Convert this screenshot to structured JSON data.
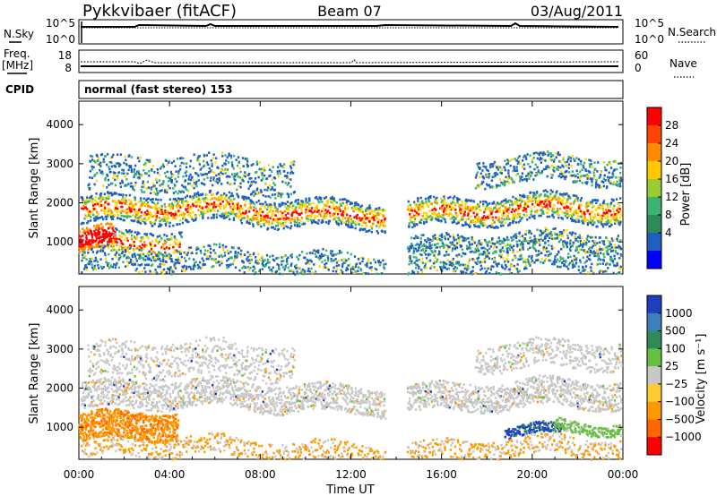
{
  "header": {
    "station": "Pykkvibaer (fitACF)",
    "beam": "Beam 07",
    "date": "03/Aug/2011"
  },
  "top_panels": {
    "nsky_label": "N.Sky",
    "nsky_ticks": [
      "10^5",
      "10^0"
    ],
    "nsearch_label": "N.Search",
    "nsearch_ticks": [
      "10^5",
      "10^0"
    ],
    "freq_label": "Freq.",
    "freq_unit": "[MHz]",
    "freq_ticks": [
      "18",
      "8"
    ],
    "nave_label": "Nave",
    "nave_ticks": [
      "60",
      "0"
    ],
    "cpid_label": "CPID",
    "cpid_text": "normal (fast stereo) 153"
  },
  "chart_data": [
    {
      "type": "heatmap",
      "name": "power-panel",
      "ylabel": "Slant Range [km]",
      "yticks": [
        "4000",
        "3000",
        "2000",
        "1000"
      ],
      "yticks_values": [
        4000,
        3000,
        2000,
        1000
      ],
      "ylim": [
        180,
        4600
      ],
      "xticks": [
        "00:00",
        "04:00",
        "08:00",
        "12:00",
        "16:00",
        "20:00",
        "00:00"
      ],
      "xlim_hours": [
        0,
        24
      ],
      "colorbar_label": "Power [dB]",
      "colorbar_ticks": [
        "28",
        "24",
        "20",
        "16",
        "12",
        "8",
        "4"
      ],
      "colorbar_colors": [
        "#ff0000",
        "#ff4500",
        "#ff8c00",
        "#ffc800",
        "#9acd32",
        "#3cb371",
        "#2e8b57",
        "#1f5fbf",
        "#0000ff"
      ],
      "data_gap_hours": [
        13.5,
        14.5
      ],
      "echo_bands": [
        {
          "range_km": [
            1500,
            2200
          ],
          "level": "peak"
        },
        {
          "range_km": [
            2400,
            3100
          ],
          "level": "moderate"
        },
        {
          "range_km": [
            800,
            1300
          ],
          "level": "high, 00:00-01:30"
        }
      ]
    },
    {
      "type": "heatmap",
      "name": "velocity-panel",
      "ylabel": "Slant Range [km]",
      "yticks": [
        "4000",
        "3000",
        "2000",
        "1000"
      ],
      "yticks_values": [
        4000,
        3000,
        2000,
        1000
      ],
      "ylim": [
        180,
        4600
      ],
      "xticks": [
        "00:00",
        "04:00",
        "08:00",
        "12:00",
        "16:00",
        "20:00",
        "00:00"
      ],
      "xlim_hours": [
        0,
        24
      ],
      "xlabel": "Time UT",
      "colorbar_label": "Velocity [m s⁻¹]",
      "colorbar_ticks": [
        "1000",
        "500",
        "100",
        "25",
        "−25",
        "−100",
        "−500",
        "−1000"
      ],
      "colorbar_colors": [
        "#1f3fbf",
        "#3b7fbf",
        "#2e8b57",
        "#66c040",
        "#c8c8c8",
        "#ffcc33",
        "#ff9900",
        "#ff6600",
        "#ff0000"
      ],
      "data_gap_hours": [
        13.5,
        14.5
      ]
    }
  ],
  "colors": {
    "power_peak": "#ff0000",
    "power_high": "#ff8c00",
    "power_mid": "#ffd700",
    "power_low": "#3cb371",
    "power_weak": "#1f5fbf",
    "vel_gray": "#c8c8c8",
    "vel_orange": "#ff9900"
  }
}
